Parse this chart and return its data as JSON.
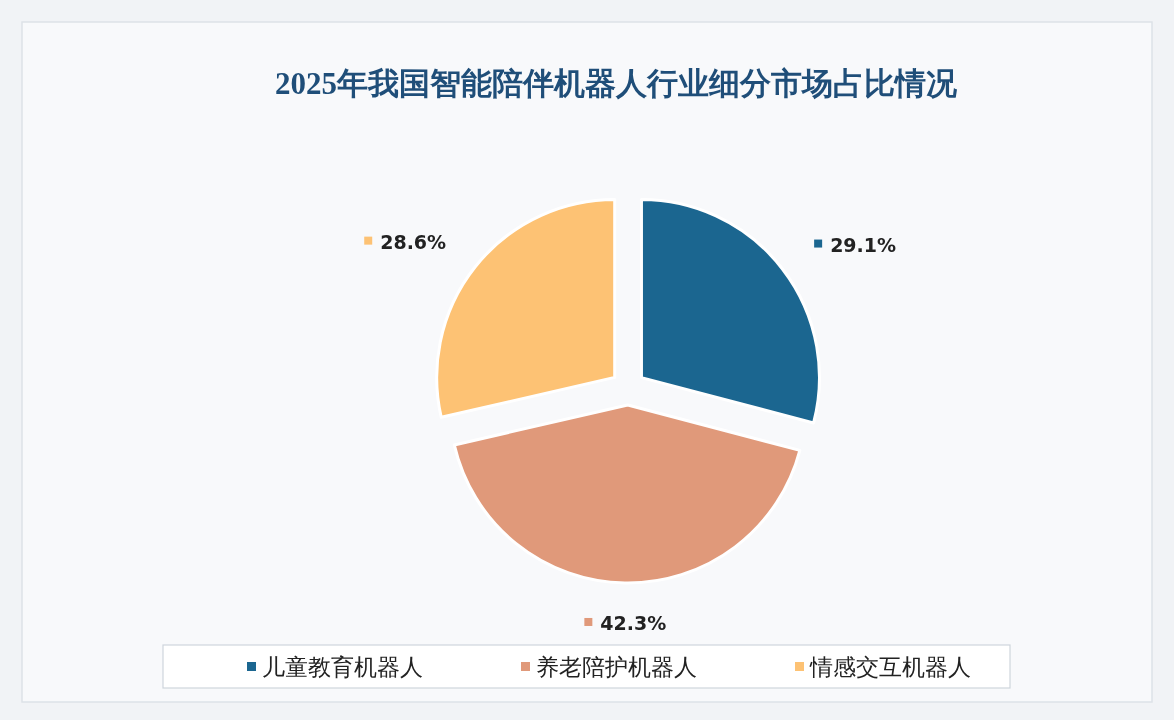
{
  "chart_data": {
    "type": "pie",
    "title": "2025年我国智能陪伴机器人行业细分市场占比情况",
    "categories": [
      "儿童教育机器人",
      "养老陪护机器人",
      "情感交互机器人"
    ],
    "values": [
      29.1,
      42.3,
      28.6
    ],
    "colors": [
      "#1b6690",
      "#e0997a",
      "#fdc274"
    ],
    "value_labels": [
      "29.1%",
      "42.3%",
      "28.6%"
    ],
    "legend": "bottom"
  }
}
